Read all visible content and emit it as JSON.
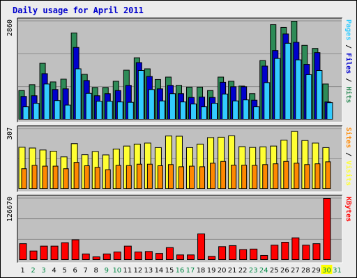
{
  "title": "Daily usage for April 2011",
  "colors": {
    "frame_bg": "#ececec",
    "panel_bg": "#c0c0c0",
    "hits": "#2e8b57",
    "files": "#0000cc",
    "pages": "#33ccff",
    "visits": "#ffff33",
    "sites": "#ff8800",
    "kbytes": "#ff0000",
    "weekend_day": "#008844",
    "weekday": "#000000"
  },
  "legends": {
    "top": {
      "pages": "Pages",
      "files": "Files",
      "hits": "Hits",
      "separator": " / "
    },
    "middle": {
      "sites": "Sites",
      "visits": "Visits",
      "separator": " / "
    },
    "bottom": {
      "kbytes": "KBytes"
    }
  },
  "chart_data": [
    {
      "type": "bar",
      "panel": "top",
      "ymax_label": "2860",
      "ylim": [
        0,
        2860
      ],
      "x": [
        1,
        2,
        3,
        4,
        5,
        6,
        7,
        8,
        9,
        10,
        11,
        12,
        13,
        14,
        15,
        16,
        17,
        18,
        19,
        20,
        21,
        22,
        23,
        24,
        25,
        26,
        27,
        28,
        29,
        30,
        31
      ],
      "series": [
        {
          "name": "Hits",
          "values": [
            850,
            1020,
            1640,
            1100,
            1180,
            2520,
            1320,
            940,
            940,
            1120,
            1440,
            1800,
            1480,
            1170,
            1240,
            1000,
            950,
            950,
            850,
            1240,
            1120,
            980,
            760,
            1720,
            2760,
            2680,
            2860,
            2160,
            2070,
            1040,
            0
          ]
        },
        {
          "name": "Files",
          "values": [
            680,
            700,
            1340,
            880,
            900,
            2100,
            1140,
            700,
            760,
            850,
            1000,
            1660,
            1260,
            900,
            1000,
            760,
            650,
            660,
            650,
            1090,
            960,
            960,
            570,
            1560,
            2010,
            2490,
            2250,
            1610,
            1950,
            520,
            0
          ]
        },
        {
          "name": "Pages",
          "values": [
            380,
            480,
            1040,
            560,
            430,
            1480,
            770,
            540,
            540,
            520,
            510,
            1430,
            880,
            550,
            760,
            520,
            460,
            380,
            480,
            750,
            550,
            580,
            380,
            1080,
            1780,
            2220,
            1740,
            1310,
            1430,
            500,
            0
          ]
        }
      ]
    },
    {
      "type": "bar",
      "panel": "middle",
      "ymax_label": "307",
      "ylim": [
        0,
        307
      ],
      "x": [
        1,
        2,
        3,
        4,
        5,
        6,
        7,
        8,
        9,
        10,
        11,
        12,
        13,
        14,
        15,
        16,
        17,
        18,
        19,
        20,
        21,
        22,
        23,
        24,
        25,
        26,
        27,
        28,
        29,
        30,
        31
      ],
      "series": [
        {
          "name": "Visits",
          "values": [
            214,
            210,
            200,
            194,
            165,
            232,
            176,
            192,
            175,
            205,
            220,
            230,
            235,
            212,
            271,
            270,
            212,
            230,
            263,
            265,
            272,
            217,
            213,
            216,
            220,
            250,
            294,
            248,
            235,
            212,
            0
          ]
        },
        {
          "name": "Sites",
          "values": [
            105,
            122,
            118,
            118,
            105,
            137,
            120,
            112,
            100,
            122,
            121,
            128,
            128,
            120,
            126,
            115,
            118,
            115,
            133,
            142,
            123,
            123,
            122,
            126,
            130,
            142,
            133,
            126,
            130,
            140,
            0
          ]
        }
      ]
    },
    {
      "type": "bar",
      "panel": "bottom",
      "ymax_label": "126670",
      "ylim": [
        0,
        126670
      ],
      "x": [
        1,
        2,
        3,
        4,
        5,
        6,
        7,
        8,
        9,
        10,
        11,
        12,
        13,
        14,
        15,
        16,
        17,
        18,
        19,
        20,
        21,
        22,
        23,
        24,
        25,
        26,
        27,
        28,
        29,
        30,
        31
      ],
      "series": [
        {
          "name": "KBytes",
          "values": [
            34000,
            19000,
            29000,
            29000,
            36000,
            42000,
            13000,
            7000,
            13000,
            17000,
            29000,
            17000,
            18000,
            14000,
            26000,
            11000,
            11000,
            54000,
            8000,
            28000,
            30000,
            22000,
            23000,
            10000,
            31000,
            37000,
            46000,
            31000,
            34000,
            126670,
            0
          ]
        }
      ]
    }
  ],
  "x_labels": [
    "1",
    "2",
    "3",
    "4",
    "5",
    "6",
    "7",
    "8",
    "9",
    "10",
    "11",
    "12",
    "13",
    "14",
    "15",
    "16",
    "17",
    "18",
    "19",
    "20",
    "21",
    "22",
    "23",
    "24",
    "25",
    "26",
    "27",
    "28",
    "29",
    "30",
    "31"
  ],
  "weekend_days": [
    2,
    3,
    9,
    10,
    16,
    17,
    23,
    24,
    30,
    31
  ],
  "highlighted_day": 30
}
